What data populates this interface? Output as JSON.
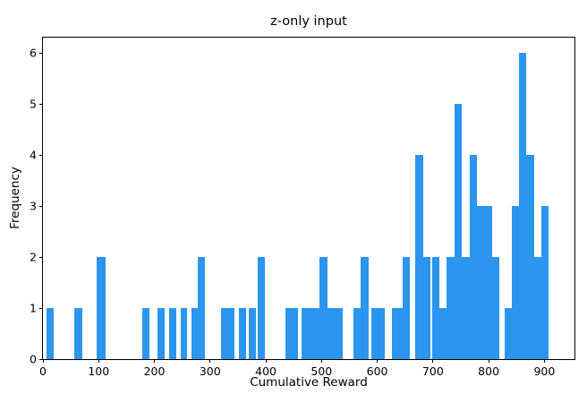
{
  "chart_data": {
    "type": "bar",
    "subtype": "histogram",
    "title": "z-only input",
    "xlabel": "Cumulative Reward",
    "ylabel": "Frequency",
    "xlim": [
      0,
      954
    ],
    "ylim": [
      0,
      6.3
    ],
    "x_ticks": [
      0,
      100,
      200,
      300,
      400,
      500,
      600,
      700,
      800,
      900
    ],
    "y_ticks": [
      0,
      1,
      2,
      3,
      4,
      5,
      6
    ],
    "grid": false,
    "bar_color": "#2b95f0",
    "axis_color": "#000000",
    "background_color": "#ffffff",
    "bars": [
      {
        "x0": 6,
        "x1": 19,
        "freq": 1
      },
      {
        "x0": 57,
        "x1": 70,
        "freq": 1
      },
      {
        "x0": 97,
        "x1": 112,
        "freq": 2
      },
      {
        "x0": 178,
        "x1": 191,
        "freq": 1
      },
      {
        "x0": 205,
        "x1": 218,
        "freq": 1
      },
      {
        "x0": 227,
        "x1": 240,
        "freq": 1
      },
      {
        "x0": 247,
        "x1": 259,
        "freq": 1
      },
      {
        "x0": 267,
        "x1": 278,
        "freq": 1
      },
      {
        "x0": 278,
        "x1": 291,
        "freq": 2
      },
      {
        "x0": 319,
        "x1": 343,
        "freq": 1
      },
      {
        "x0": 351,
        "x1": 364,
        "freq": 1
      },
      {
        "x0": 370,
        "x1": 383,
        "freq": 1
      },
      {
        "x0": 386,
        "x1": 399,
        "freq": 2
      },
      {
        "x0": 436,
        "x1": 457,
        "freq": 1
      },
      {
        "x0": 464,
        "x1": 497,
        "freq": 1
      },
      {
        "x0": 497,
        "x1": 511,
        "freq": 2
      },
      {
        "x0": 511,
        "x1": 538,
        "freq": 1
      },
      {
        "x0": 557,
        "x1": 570,
        "freq": 1
      },
      {
        "x0": 570,
        "x1": 584,
        "freq": 2
      },
      {
        "x0": 589,
        "x1": 614,
        "freq": 1
      },
      {
        "x0": 627,
        "x1": 645,
        "freq": 1
      },
      {
        "x0": 645,
        "x1": 658,
        "freq": 2
      },
      {
        "x0": 668,
        "x1": 682,
        "freq": 4
      },
      {
        "x0": 682,
        "x1": 695,
        "freq": 2
      },
      {
        "x0": 698,
        "x1": 712,
        "freq": 2
      },
      {
        "x0": 712,
        "x1": 725,
        "freq": 1
      },
      {
        "x0": 725,
        "x1": 739,
        "freq": 2
      },
      {
        "x0": 739,
        "x1": 752,
        "freq": 5
      },
      {
        "x0": 752,
        "x1": 766,
        "freq": 2
      },
      {
        "x0": 766,
        "x1": 779,
        "freq": 4
      },
      {
        "x0": 779,
        "x1": 806,
        "freq": 3
      },
      {
        "x0": 806,
        "x1": 819,
        "freq": 2
      },
      {
        "x0": 828,
        "x1": 841,
        "freq": 1
      },
      {
        "x0": 841,
        "x1": 855,
        "freq": 3
      },
      {
        "x0": 855,
        "x1": 868,
        "freq": 6
      },
      {
        "x0": 868,
        "x1": 881,
        "freq": 4
      },
      {
        "x0": 881,
        "x1": 895,
        "freq": 2
      },
      {
        "x0": 895,
        "x1": 908,
        "freq": 3
      }
    ]
  }
}
